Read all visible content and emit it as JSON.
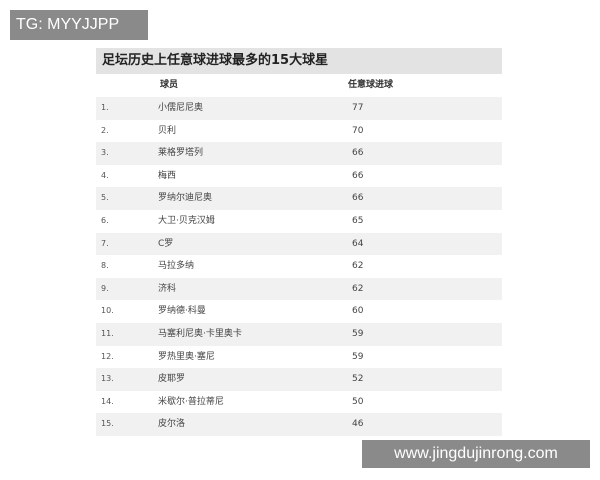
{
  "watermarks": {
    "top_left": "TG: MYYJJPP",
    "bottom_right": "www.jingdujinrong.com"
  },
  "table": {
    "title": "足坛历史上任意球进球最多的15大球星",
    "headers": {
      "player": "球员",
      "goals": "任意球进球"
    },
    "rows": [
      {
        "rank": "1.",
        "name": "小儒尼尼奥",
        "goals": "77"
      },
      {
        "rank": "2.",
        "name": "贝利",
        "goals": "70"
      },
      {
        "rank": "3.",
        "name": "莱格罗塔列",
        "goals": "66"
      },
      {
        "rank": "4.",
        "name": "梅西",
        "goals": "66"
      },
      {
        "rank": "5.",
        "name": "罗纳尔迪尼奥",
        "goals": "66"
      },
      {
        "rank": "6.",
        "name": "大卫·贝克汉姆",
        "goals": "65"
      },
      {
        "rank": "7.",
        "name": "C罗",
        "goals": "64"
      },
      {
        "rank": "8.",
        "name": "马拉多纳",
        "goals": "62"
      },
      {
        "rank": "9.",
        "name": "济科",
        "goals": "62"
      },
      {
        "rank": "10.",
        "name": "罗纳德·科曼",
        "goals": "60"
      },
      {
        "rank": "11.",
        "name": "马塞利尼奥·卡里奥卡",
        "goals": "59"
      },
      {
        "rank": "12.",
        "name": "罗热里奥·塞尼",
        "goals": "59"
      },
      {
        "rank": "13.",
        "name": "皮耶罗",
        "goals": "52"
      },
      {
        "rank": "14.",
        "name": "米歇尔·普拉蒂尼",
        "goals": "50"
      },
      {
        "rank": "15.",
        "name": "皮尔洛",
        "goals": "46"
      }
    ]
  }
}
